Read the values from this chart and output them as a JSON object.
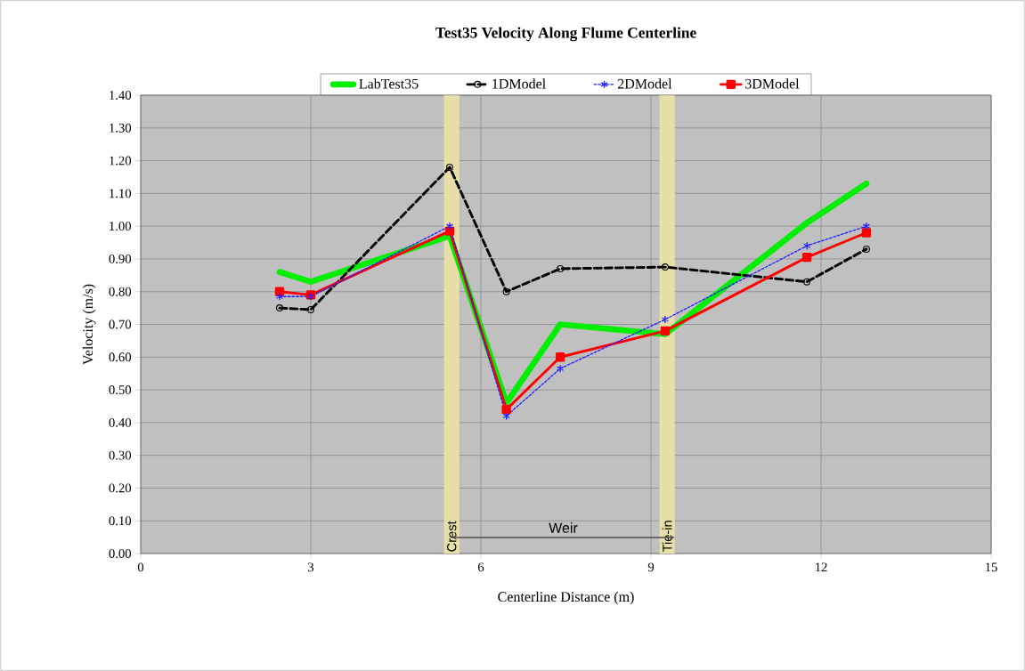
{
  "chart_data": {
    "type": "line",
    "title": "Test35 Velocity Along Flume Centerline",
    "xlabel": "Centerline Distance (m)",
    "ylabel": "Velocity (m/s)",
    "x": [
      2.45,
      3.0,
      5.45,
      6.45,
      7.4,
      9.25,
      11.75,
      12.8
    ],
    "series": [
      {
        "name": "LabTest35",
        "color": "#00ee00",
        "values": [
          0.86,
          0.83,
          0.97,
          0.46,
          0.7,
          0.67,
          1.01,
          1.13
        ],
        "marker": "none",
        "line_style": "solid"
      },
      {
        "name": "1DModel",
        "color": "#000000",
        "values": [
          0.75,
          0.745,
          1.18,
          0.8,
          0.87,
          0.875,
          0.83,
          0.93
        ],
        "marker": "circle",
        "line_style": "dashed"
      },
      {
        "name": "2DModel",
        "color": "#2020ff",
        "values": [
          0.785,
          0.785,
          1.0,
          0.42,
          0.565,
          0.715,
          0.94,
          1.0
        ],
        "marker": "cross",
        "line_style": "dotted"
      },
      {
        "name": "3DModel",
        "color": "#ff0000",
        "values": [
          0.8,
          0.79,
          0.985,
          0.44,
          0.6,
          0.68,
          0.905,
          0.98
        ],
        "marker": "square",
        "line_style": "solid"
      }
    ],
    "xlim": [
      0,
      15
    ],
    "xticks": [
      0,
      3,
      6,
      9,
      12,
      15
    ],
    "ylim": [
      0,
      1.4
    ],
    "yticks": [
      {
        "value": 0,
        "label": "0.00"
      },
      {
        "value": 0.1,
        "label": "0.10"
      },
      {
        "value": 0.2,
        "label": "0.20"
      },
      {
        "value": 0.3,
        "label": "0.30"
      },
      {
        "value": 0.4,
        "label": "0.40"
      },
      {
        "value": 0.5,
        "label": "0.50"
      },
      {
        "value": 0.6,
        "label": "0.60"
      },
      {
        "value": 0.7,
        "label": "0.70"
      },
      {
        "value": 0.8,
        "label": "0.80"
      },
      {
        "value": 0.9,
        "label": "0.90"
      },
      {
        "value": 1.0,
        "label": "1.00"
      },
      {
        "value": 1.1,
        "label": "1.10"
      },
      {
        "value": 1.2,
        "label": "1.20"
      },
      {
        "value": 1.3,
        "label": "1.30"
      },
      {
        "value": 1.4,
        "label": "1.40"
      }
    ],
    "bands": [
      {
        "axis": "x",
        "from": 5.35,
        "to": 5.62,
        "label": "Crest",
        "color": "#e6e0a8"
      },
      {
        "axis": "x",
        "from": 9.15,
        "to": 9.42,
        "label": "Tie-in",
        "color": "#e6e0a8"
      }
    ],
    "annotations": [
      "Weir"
    ],
    "grid": true,
    "legend": "top"
  }
}
